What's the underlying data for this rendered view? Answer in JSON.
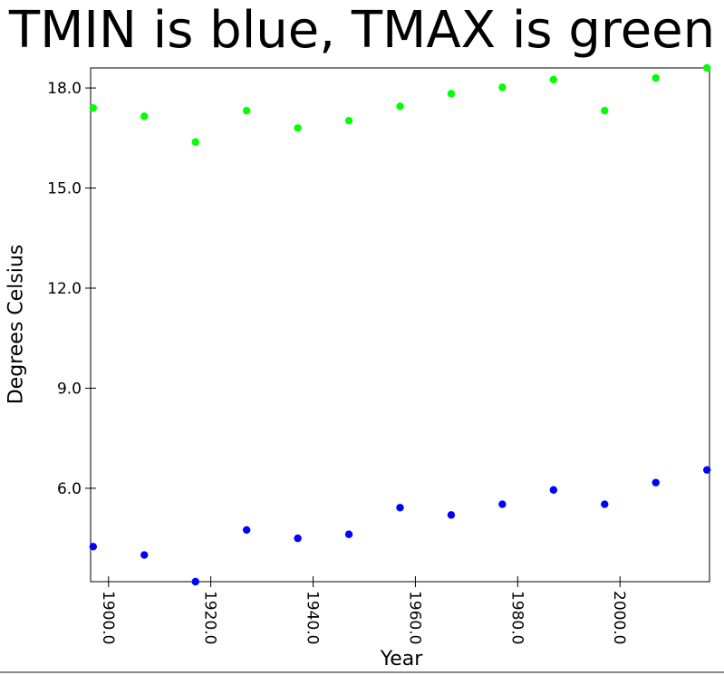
{
  "chart_data": {
    "type": "scatter",
    "title": "TMIN is blue, TMAX is green",
    "xlabel": "Year",
    "ylabel": "Degrees Celsius",
    "xlim": [
      1896.5,
      2017.5
    ],
    "ylim": [
      3.2,
      18.6
    ],
    "x_ticks": [
      "1900.0",
      "1920.0",
      "1940.0",
      "1960.0",
      "1980.0",
      "2000.0"
    ],
    "y_ticks": [
      "6.0",
      "9.0",
      "12.0",
      "15.0",
      "18.0"
    ],
    "grid": false,
    "series": [
      {
        "color": "#0000ff",
        "x": [
          1897,
          1907,
          1917,
          1927,
          1937,
          1947,
          1957,
          1967,
          1977,
          1987,
          1997,
          2007,
          2017
        ],
        "y": [
          4.25,
          4.0,
          3.2,
          4.75,
          4.5,
          4.62,
          5.42,
          5.2,
          5.52,
          5.95,
          5.52,
          6.17,
          6.55
        ]
      },
      {
        "color": "#00ff00",
        "x": [
          1897,
          1907,
          1917,
          1927,
          1937,
          1947,
          1957,
          1967,
          1977,
          1987,
          1997,
          2007,
          2017
        ],
        "y": [
          17.4,
          17.15,
          16.38,
          17.32,
          16.8,
          17.02,
          17.45,
          17.83,
          18.02,
          18.25,
          17.32,
          18.3,
          18.6
        ]
      }
    ]
  }
}
